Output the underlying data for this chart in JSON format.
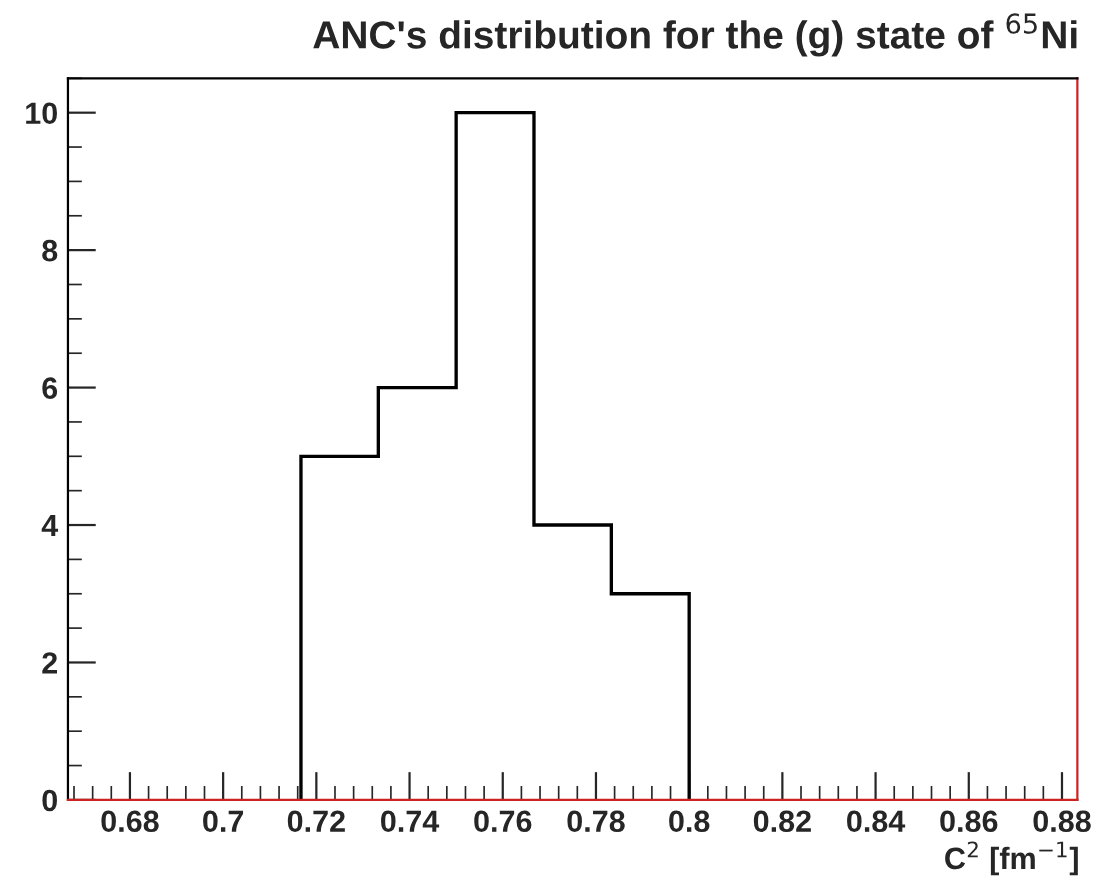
{
  "chart_data": {
    "type": "histogram",
    "title": "ANC's distribution for the (g) state of $^{65}$Ni",
    "xlabel": "C$^{2}$ [fm$^{−1}$]",
    "bins": [
      0.7167,
      0.7333,
      0.75,
      0.7667,
      0.7833,
      0.8
    ],
    "values": [
      5,
      6,
      10,
      4,
      3
    ],
    "color": "#000000",
    "xlim": [
      0.6667,
      0.8833
    ],
    "xticks": [
      0.68,
      0.7,
      0.72,
      0.74,
      0.76,
      0.78,
      0.8,
      0.82,
      0.84,
      0.86,
      0.88
    ],
    "ylim": [
      0,
      10.5
    ],
    "yticks": [
      0,
      2,
      4,
      6,
      8,
      10
    ],
    "grid": false
  }
}
